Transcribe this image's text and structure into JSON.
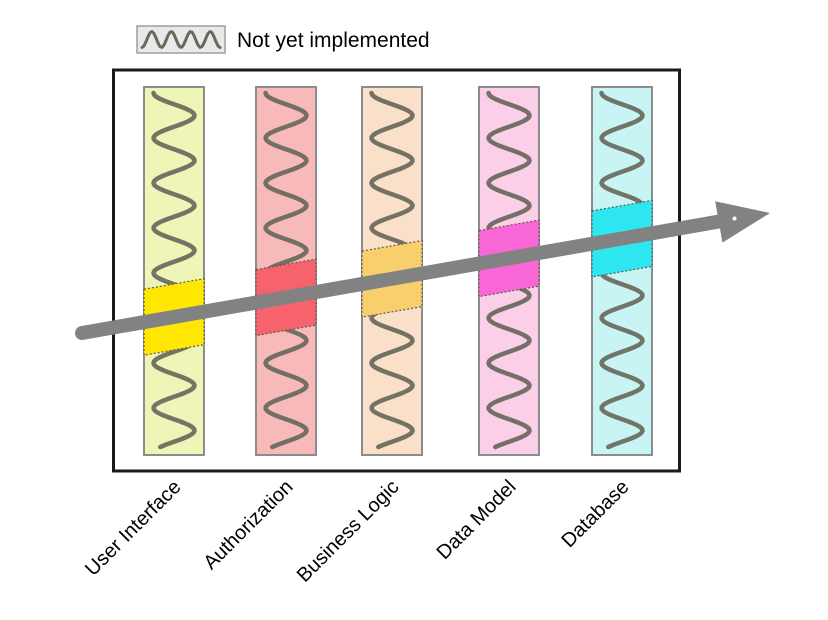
{
  "legend": {
    "label": "Not yet implemented",
    "swatch_fill": "#e9e9e9"
  },
  "arrow": {
    "color": "#828282"
  },
  "squiggle": {
    "color": "#68685c"
  },
  "layers": [
    {
      "label": "User Interface",
      "base_color": "#eef5b6",
      "highlight_color": "#ffe702"
    },
    {
      "label": "Authorization",
      "base_color": "#f8b9b9",
      "highlight_color": "#f7636d"
    },
    {
      "label": "Business Logic",
      "base_color": "#fae0c9",
      "highlight_color": "#f9cf6e"
    },
    {
      "label": "Data Model",
      "base_color": "#fbcfe7",
      "highlight_color": "#f966d5"
    },
    {
      "label": "Database",
      "base_color": "#c8f4f4",
      "highlight_color": "#2ee6ef"
    }
  ]
}
